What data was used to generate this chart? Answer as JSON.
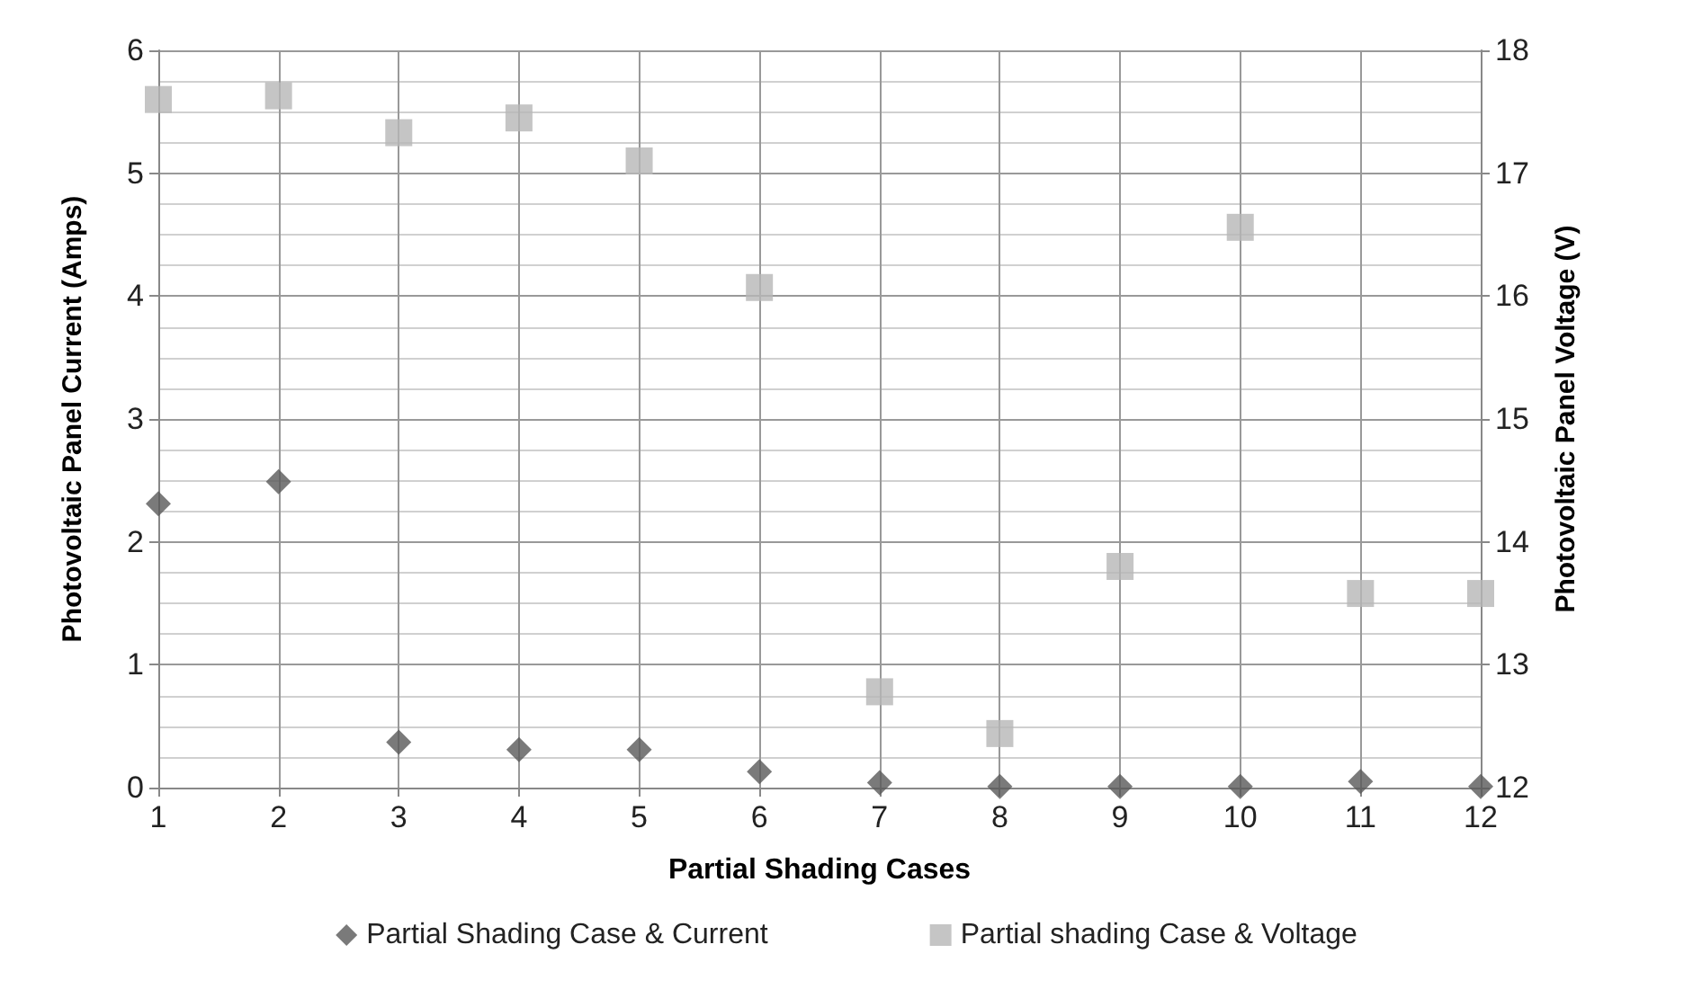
{
  "chart_data": {
    "type": "scatter",
    "xlabel": "Partial Shading Cases",
    "ylabel": "Photovoltaic Panel Current (Amps)",
    "y2label": "Photovoltaic Panel Voltage (V)",
    "x": [
      1,
      2,
      3,
      4,
      5,
      6,
      7,
      8,
      9,
      10,
      11,
      12
    ],
    "series": [
      {
        "name": "Partial Shading Case & Current",
        "color": "#595959",
        "marker": "diamond",
        "values": [
          2.31,
          2.49,
          0.37,
          0.31,
          0.31,
          0.13,
          0.04,
          0.01,
          0.01,
          0.01,
          0.05,
          0.01
        ]
      },
      {
        "name": "Partial shading Case & Voltage",
        "color": "#b7b7b7",
        "marker": "square",
        "axis": "y2",
        "values": [
          17.6,
          17.63,
          17.33,
          17.45,
          17.1,
          16.07,
          12.78,
          12.44,
          13.8,
          16.56,
          13.58,
          13.58
        ]
      }
    ],
    "xlim": [
      1,
      12
    ],
    "xticks": [
      1,
      2,
      3,
      4,
      5,
      6,
      7,
      8,
      9,
      10,
      11,
      12
    ],
    "ylim": [
      0,
      6
    ],
    "yticks": [
      0,
      1,
      2,
      3,
      4,
      5,
      6
    ],
    "y2lim": [
      12,
      18
    ],
    "y2ticks": [
      12,
      13,
      14,
      15,
      16,
      17,
      18
    ],
    "grid": true,
    "legend": "bottom"
  }
}
